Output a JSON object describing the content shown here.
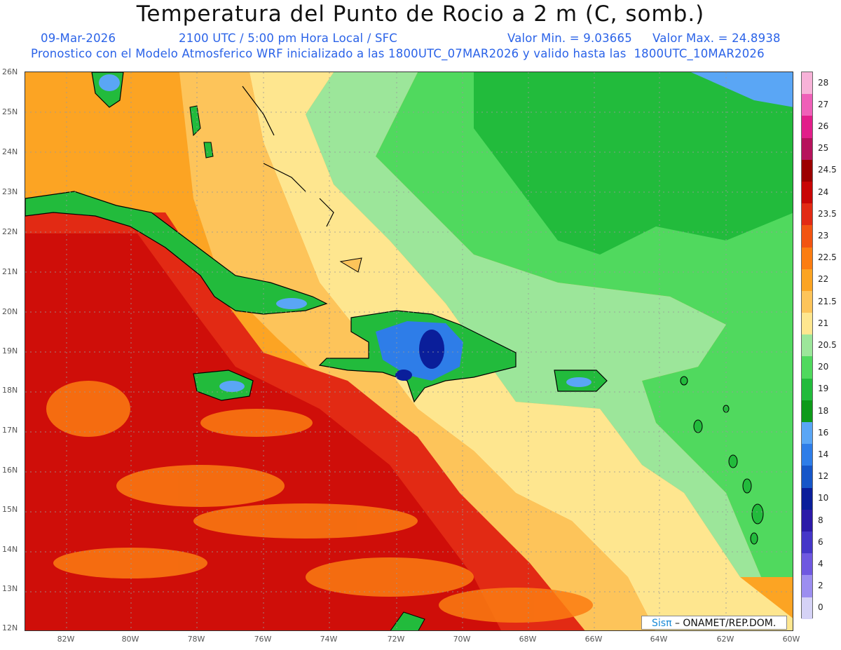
{
  "title": "Temperatura del Punto de Rocio a 2 m (C, somb.)",
  "header": {
    "date": "09-Mar-2026",
    "time": "2100 UTC / 5:00 pm Hora Local / SFC",
    "min": "Valor Min. = 9.03665",
    "max": "Valor Max. = 24.8938",
    "forecast": "Pronostico con el Modelo Atmosferico WRF inicializado a las 1800UTC_07MAR2026 y valido hasta las  1800UTC_10MAR2026"
  },
  "lat_labels": [
    "26N",
    "25N",
    "24N",
    "23N",
    "22N",
    "21N",
    "20N",
    "19N",
    "18N",
    "17N",
    "16N",
    "15N",
    "14N",
    "13N",
    "12N"
  ],
  "lon_labels": [
    "82W",
    "80W",
    "78W",
    "76W",
    "74W",
    "72W",
    "70W",
    "68W",
    "66W",
    "64W",
    "62W",
    "60W"
  ],
  "colorbar": {
    "labels": [
      "28",
      "27",
      "26",
      "25",
      "24.5",
      "24",
      "23.5",
      "23",
      "22.5",
      "22",
      "21.5",
      "21",
      "20.5",
      "20",
      "19",
      "18",
      "16",
      "14",
      "12",
      "10",
      "8",
      "6",
      "4",
      "2",
      "0"
    ],
    "colors": [
      "#f7b2d8",
      "#ef60b8",
      "#e21e8a",
      "#b6125c",
      "#9c0000",
      "#c80606",
      "#e22a14",
      "#f25412",
      "#fb7d12",
      "#fca423",
      "#fdc45a",
      "#fee68f",
      "#9ce69a",
      "#50d95e",
      "#22bb3c",
      "#0e9a1a",
      "#5aa6f5",
      "#2e7de8",
      "#1656c8",
      "#0a1e9a",
      "#2c1aa8",
      "#4536c8",
      "#6f58e0",
      "#9c8ef0",
      "#d5d2f6"
    ]
  },
  "credit": {
    "sis": "Sisπ",
    "text": "– ONAMET/REP.DOM."
  }
}
